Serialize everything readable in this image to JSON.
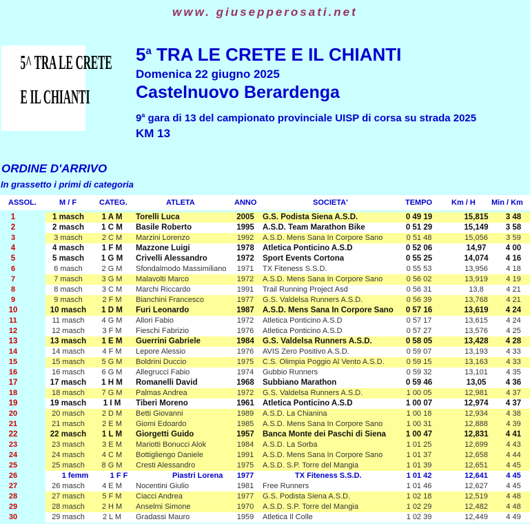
{
  "site": "www. giusepperosati.net",
  "logo_text": [
    "5^ TRA LE CRETE",
    "E IL CHIANTI"
  ],
  "header": {
    "title_num": "5",
    "title_sup": "a",
    "title": " TRA LE CRETE E IL CHIANTI",
    "date": "Domenica 22 giugno 2025",
    "place": "Castelnuovo Berardenga",
    "race_num": "9",
    "race_sup": "a",
    "race_desc": " gara di 13 del campionato provinciale  UISP di corsa su strada 2025",
    "distance": "KM 13"
  },
  "section_title": "ORDINE D'ARRIVO",
  "section_note": "In grassetto i primi di categoria",
  "columns": [
    "ASSOL.",
    "M / F",
    "CATEG.",
    "ATLETA",
    "ANNO",
    "SOCIETA'",
    "TEMPO",
    "Km / H",
    "Min / Km"
  ],
  "colors": {
    "background": "#ccffff",
    "row_highlight": "#ffff99",
    "accent": "#0000cc",
    "position": "#cc0000"
  },
  "rows": [
    [
      "1",
      "1 masch",
      "1 A M",
      "Torelli Luca",
      "2005",
      "G.S. Podista Siena A.S.D.",
      "0 49 19",
      "15,815",
      "3 48",
      "y",
      "b"
    ],
    [
      "2",
      "2 masch",
      "1 C M",
      "Basile Roberto",
      "1995",
      "A.S.D. Team Marathon Bike",
      "0 51 29",
      "15,149",
      "3 58",
      "w",
      "b"
    ],
    [
      "3",
      "3 masch",
      "2 C M",
      "Marzini Lorenzo",
      "1992",
      "A.S.D. Mens Sana In Corpore Sano",
      "0 51 48",
      "15,056",
      "3 59",
      "y",
      ""
    ],
    [
      "4",
      "4 masch",
      "1 F M",
      "Mazzone Luigi",
      "1978",
      "Atletica Ponticino A.S.D",
      "0 52 06",
      "14,97",
      "4 00",
      "w",
      "b"
    ],
    [
      "5",
      "5 masch",
      "1 G M",
      "Crivelli Alessandro",
      "1972",
      "Sport Events Cortona",
      "0 55 25",
      "14,074",
      "4 16",
      "w",
      "b"
    ],
    [
      "6",
      "6 masch",
      "2 G M",
      "Sfondalmodo Massimiliano",
      "1971",
      "TX Fiteness S.S.D.",
      "0 55 53",
      "13,956",
      "4 18",
      "w",
      ""
    ],
    [
      "7",
      "7 masch",
      "3 G M",
      "Malavolti Marco",
      "1972",
      "A.S.D. Mens Sana In Corpore Sano",
      "0 56 02",
      "13,919",
      "4 19",
      "y",
      ""
    ],
    [
      "8",
      "8 masch",
      "3 C M",
      "Marchi Riccardo",
      "1991",
      "Trail Running Project Asd",
      "0 56 31",
      "13,8",
      "4 21",
      "w",
      ""
    ],
    [
      "9",
      "9 masch",
      "2 F M",
      "Bianchini Francesco",
      "1977",
      "G.S. Valdelsa Runners A.S.D.",
      "0 56 39",
      "13,768",
      "4 21",
      "y",
      ""
    ],
    [
      "10",
      "10 masch",
      "1 D M",
      "Furi Leonardo",
      "1987",
      "A.S.D. Mens Sana In Corpore Sano",
      "0 57 16",
      "13,619",
      "4 24",
      "y",
      "b"
    ],
    [
      "11",
      "11 masch",
      "4 G M",
      "Allori Fabio",
      "1972",
      "Atletica Ponticino A.S.D",
      "0 57 17",
      "13,615",
      "4 24",
      "w",
      ""
    ],
    [
      "12",
      "12 masch",
      "3 F M",
      "Fieschi Fabrizio",
      "1976",
      "Atletica Ponticino A.S.D",
      "0 57 27",
      "13,576",
      "4 25",
      "w",
      ""
    ],
    [
      "13",
      "13 masch",
      "1 E M",
      "Guerrini Gabriele",
      "1984",
      "G.S. Valdelsa Runners A.S.D.",
      "0 58 05",
      "13,428",
      "4 28",
      "y",
      "b"
    ],
    [
      "14",
      "14 masch",
      "4 F M",
      "Lepore Alessio",
      "1976",
      "AVIS Zero Positivo A.S.D.",
      "0 59 07",
      "13,193",
      "4 33",
      "w",
      ""
    ],
    [
      "15",
      "15 masch",
      "5 G M",
      "Boldrini Duccio",
      "1975",
      "C.S. Olimpia Poggio Al Vento A.S.D.",
      "0 59 15",
      "13,163",
      "4 33",
      "y",
      ""
    ],
    [
      "16",
      "16 masch",
      "6 G M",
      "Allegrucci Fabio",
      "1974",
      "Gubbio Runners",
      "0 59 32",
      "13,101",
      "4 35",
      "w",
      ""
    ],
    [
      "17",
      "17 masch",
      "1 H M",
      "Romanelli David",
      "1968",
      "Subbiano Marathon",
      "0 59 46",
      "13,05",
      "4 36",
      "w",
      "b"
    ],
    [
      "18",
      "18 masch",
      "7 G M",
      "Palmas Andrea",
      "1972",
      "G.S. Valdelsa Runners A.S.D.",
      "1 00 05",
      "12,981",
      "4 37",
      "y",
      ""
    ],
    [
      "19",
      "19 masch",
      "1 I M",
      "Tiberi Moreno",
      "1961",
      "Atletica Ponticino A.S.D",
      "1 00 07",
      "12,974",
      "4 37",
      "w",
      "b"
    ],
    [
      "20",
      "20 masch",
      "2 D M",
      "Betti Giovanni",
      "1989",
      "A.S.D. La Chianina",
      "1 00 18",
      "12,934",
      "4 38",
      "y",
      ""
    ],
    [
      "21",
      "21 masch",
      "2 E M",
      "Giomi Edoardo",
      "1985",
      "A.S.D. Mens Sana In Corpore Sano",
      "1 00 31",
      "12,888",
      "4 39",
      "y",
      ""
    ],
    [
      "22",
      "22 masch",
      "1 L M",
      "Giorgetti Guido",
      "1957",
      "Banca Monte dei Paschi di Siena",
      "1 00 47",
      "12,831",
      "4 41",
      "y",
      "b"
    ],
    [
      "23",
      "23 masch",
      "3 E M",
      "Mariotti Bonucci Alok",
      "1984",
      "A.S.D. La Sorba",
      "1 01 25",
      "12,699",
      "4 43",
      "y",
      ""
    ],
    [
      "24",
      "24 masch",
      "4 C M",
      "Bottigliengo Daniele",
      "1991",
      "A.S.D. Mens Sana In Corpore Sano",
      "1 01 37",
      "12,658",
      "4 44",
      "y",
      ""
    ],
    [
      "25",
      "25 masch",
      "8 G M",
      "Cresti Alessandro",
      "1975",
      "A.S.D. S.P. Torre del Mangia",
      "1 01 39",
      "12,651",
      "4 45",
      "y",
      ""
    ],
    [
      "26",
      "1 femm",
      "1 F F",
      "Piastri Lorena",
      "1977",
      "TX Fiteness S.S.D.",
      "1 01 42",
      "12,641",
      "4 45",
      "w",
      "f"
    ],
    [
      "27",
      "26 masch",
      "4 E M",
      "Nocentini Giulio",
      "1981",
      "Free Runners",
      "1 01 46",
      "12,627",
      "4 45",
      "w",
      ""
    ],
    [
      "28",
      "27 masch",
      "5 F M",
      "Ciacci Andrea",
      "1977",
      "G.S. Podista Siena A.S.D.",
      "1 02 18",
      "12,519",
      "4 48",
      "y",
      ""
    ],
    [
      "29",
      "28 masch",
      "2 H M",
      "Anselmi Simone",
      "1970",
      "A.S.D. S.P. Torre del Mangia",
      "1 02 29",
      "12,482",
      "4 48",
      "y",
      ""
    ],
    [
      "30",
      "29 masch",
      "2 L M",
      "Gradassi Mauro",
      "1959",
      "Atletica Il Colle",
      "1 02 39",
      "12,449",
      "4 49",
      "w",
      ""
    ]
  ]
}
